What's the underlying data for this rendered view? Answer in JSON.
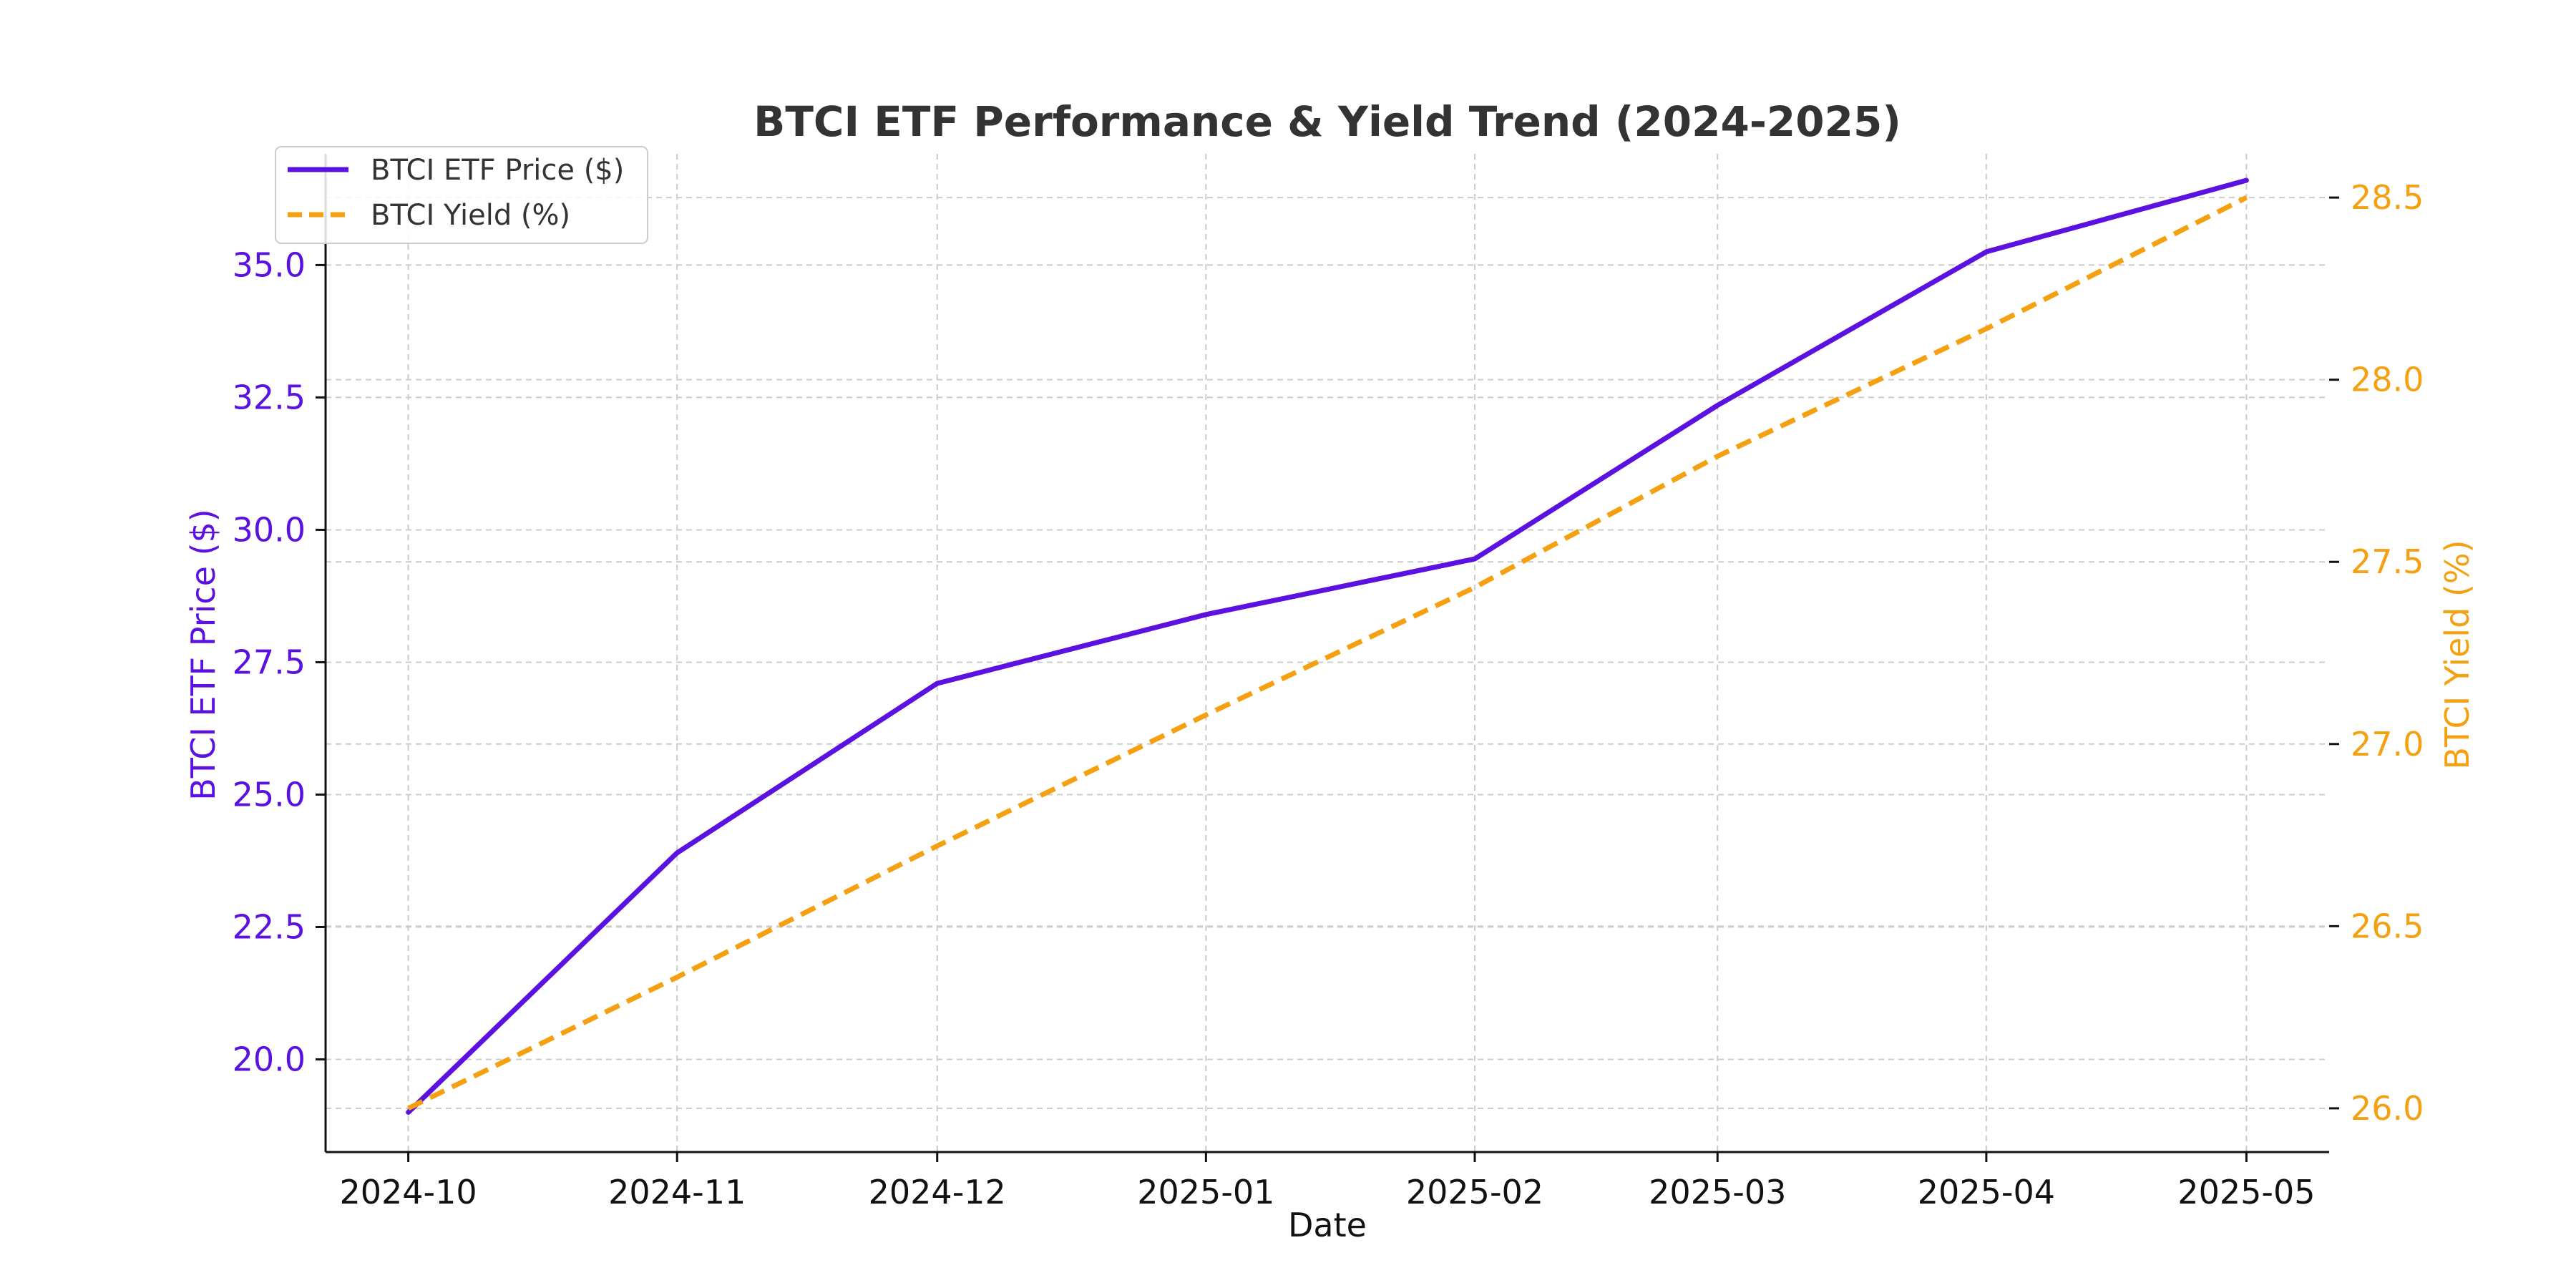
{
  "chart_data": {
    "type": "line",
    "title": "BTCI ETF Performance & Yield Trend (2024-2025)",
    "xlabel": "Date",
    "ylabel_left": "BTCI ETF Price ($)",
    "ylabel_right": "BTCI Yield (%)",
    "x": [
      "2024-10-01",
      "2024-11-01",
      "2024-12-01",
      "2025-01-01",
      "2025-02-01",
      "2025-03-01",
      "2025-04-01",
      "2025-05-01"
    ],
    "x_tick_labels": [
      "2024-10",
      "2024-11",
      "2024-12",
      "2025-01",
      "2025-02",
      "2025-03",
      "2025-04",
      "2025-05"
    ],
    "ylim_left": [
      18.25,
      37.1
    ],
    "ylim_right": [
      25.88,
      28.62
    ],
    "yticks_left": [
      "20.0",
      "22.5",
      "25.0",
      "27.5",
      "30.0",
      "32.5",
      "35.0"
    ],
    "yticks_right": [
      "26.0",
      "26.5",
      "27.0",
      "27.5",
      "28.0",
      "28.5"
    ],
    "grid": true,
    "legend_position": "top-left",
    "series": [
      {
        "name": "BTCI ETF Price ($)",
        "axis": "left",
        "color": "#5b12e0",
        "style": "solid",
        "values": [
          19.0,
          23.9,
          27.1,
          28.4,
          29.45,
          32.35,
          35.25,
          36.6
        ]
      },
      {
        "name": "BTCI Yield (%)",
        "axis": "right",
        "color": "#f5a011",
        "style": "dashed",
        "values": [
          26.0,
          26.36,
          26.72,
          27.08,
          27.43,
          27.79,
          28.14,
          28.5
        ]
      }
    ]
  }
}
